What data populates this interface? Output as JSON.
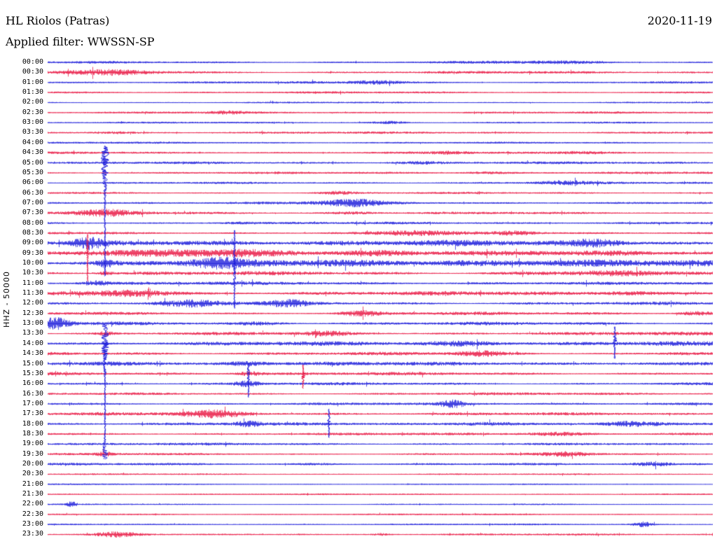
{
  "header": {
    "station": "HL Riolos (Patras)",
    "filter": "Applied filter: WWSSN-SP",
    "date": "2020-11-19"
  },
  "chart_data": {
    "type": "line",
    "title": "HL Riolos (Patras)",
    "subtitle": "Applied filter: WWSSN-SP",
    "date": "2020-11-19",
    "ylabel": "HHZ - 50000",
    "channel": "HHZ",
    "scale": "50000",
    "minutes_per_row": 30,
    "legend": "none",
    "grid": false,
    "background": "#ffffff",
    "trace_colors": [
      "#1616d9",
      "#e8123f"
    ],
    "rows": [
      {
        "t": "00:00",
        "amp": 2.2,
        "bursts": [
          {
            "x": 0.75,
            "w": 0.1,
            "a": 1.8
          }
        ]
      },
      {
        "t": "00:30",
        "amp": 2.2,
        "bursts": [
          {
            "x": 0.1,
            "w": 0.09,
            "a": 2.6
          }
        ]
      },
      {
        "t": "01:00",
        "amp": 2.0,
        "bursts": [
          {
            "x": 0.5,
            "w": 0.035,
            "a": 3.2
          }
        ]
      },
      {
        "t": "01:30",
        "amp": 2.0,
        "bursts": []
      },
      {
        "t": "02:00",
        "amp": 1.6,
        "bursts": []
      },
      {
        "t": "02:30",
        "amp": 1.6,
        "bursts": [
          {
            "x": 0.27,
            "w": 0.03,
            "a": 2.2
          }
        ]
      },
      {
        "t": "03:00",
        "amp": 1.7,
        "bursts": [
          {
            "x": 0.515,
            "w": 0.03,
            "a": 3.6
          }
        ]
      },
      {
        "t": "03:30",
        "amp": 1.8,
        "bursts": [
          {
            "x": 0.095,
            "w": 0.035,
            "a": 2.8
          }
        ]
      },
      {
        "t": "04:00",
        "amp": 1.6,
        "bursts": []
      },
      {
        "t": "04:30",
        "amp": 1.8,
        "bursts": [
          {
            "x": 0.605,
            "w": 0.03,
            "a": 2.2
          },
          {
            "x": 0.81,
            "w": 0.045,
            "a": 3.4
          }
        ]
      },
      {
        "t": "05:00",
        "amp": 1.9,
        "bursts": [
          {
            "x": 0.55,
            "w": 0.04,
            "a": 2.2
          }
        ]
      },
      {
        "t": "05:30",
        "amp": 1.9,
        "bursts": [
          {
            "x": 0.655,
            "w": 0.035,
            "a": 2.4
          }
        ]
      },
      {
        "t": "06:00",
        "amp": 1.9,
        "bursts": [
          {
            "x": 0.77,
            "w": 0.04,
            "a": 2.4
          }
        ]
      },
      {
        "t": "06:30",
        "amp": 1.9,
        "bursts": [
          {
            "x": 0.435,
            "w": 0.03,
            "a": 2.8
          }
        ]
      },
      {
        "t": "07:00",
        "amp": 2.1,
        "bursts": [
          {
            "x": 0.455,
            "w": 0.05,
            "a": 3.4
          }
        ]
      },
      {
        "t": "07:30",
        "amp": 2.1,
        "bursts": [
          {
            "x": 0.09,
            "w": 0.05,
            "a": 2.8
          },
          {
            "x": 0.46,
            "w": 0.035,
            "a": 2.2
          }
        ]
      },
      {
        "t": "08:00",
        "amp": 2.1,
        "bursts": [
          {
            "x": 0.28,
            "w": 0.03,
            "a": 2.0
          }
        ]
      },
      {
        "t": "08:30",
        "amp": 2.6,
        "bursts": [
          {
            "x": 0.55,
            "w": 0.05,
            "a": 2.6
          },
          {
            "x": 0.71,
            "w": 0.03,
            "a": 2.6
          }
        ]
      },
      {
        "t": "09:00",
        "amp": 3.6,
        "bursts": [
          {
            "x": 0.06,
            "w": 0.02,
            "a": 3.0
          },
          {
            "x": 0.52,
            "w": 0.15,
            "a": 1.7
          },
          {
            "x": 0.83,
            "w": 0.04,
            "a": 2.2
          }
        ]
      },
      {
        "t": "09:30",
        "amp": 4.2,
        "bursts": [
          {
            "x": 0.27,
            "w": 0.15,
            "a": 1.6
          },
          {
            "x": 0.52,
            "w": 0.08,
            "a": 1.9
          }
        ]
      },
      {
        "t": "10:00",
        "amp": 4.8,
        "bursts": [
          {
            "x": 0.0863,
            "w": 0.012,
            "a": 2.5
          },
          {
            "x": 0.25,
            "w": 0.04,
            "a": 2.0
          },
          {
            "x": 0.6,
            "w": 0.2,
            "a": 1.5
          }
        ]
      },
      {
        "t": "10:30",
        "amp": 3.6,
        "bursts": [
          {
            "x": 0.0863,
            "w": 0.012,
            "a": 2.5
          },
          {
            "x": 0.8,
            "w": 0.1,
            "a": 1.8
          }
        ]
      },
      {
        "t": "11:00",
        "amp": 2.6,
        "bursts": [
          {
            "x": 0.07,
            "w": 0.02,
            "a": 2.8
          }
        ]
      },
      {
        "t": "11:30",
        "amp": 3.1,
        "bursts": [
          {
            "x": 0.13,
            "w": 0.05,
            "a": 2.8
          },
          {
            "x": 0.87,
            "w": 0.04,
            "a": 2.4
          }
        ]
      },
      {
        "t": "12:00",
        "amp": 3.0,
        "bursts": [
          {
            "x": 0.22,
            "w": 0.045,
            "a": 2.4
          },
          {
            "x": 0.36,
            "w": 0.03,
            "a": 2.4
          }
        ]
      },
      {
        "t": "12:30",
        "amp": 3.0,
        "bursts": [
          {
            "x": 0.47,
            "w": 0.03,
            "a": 2.6
          },
          {
            "x": 0.97,
            "w": 0.025,
            "a": 2.6
          }
        ]
      },
      {
        "t": "13:00",
        "amp": 3.1,
        "bursts": [
          {
            "x": 0.012,
            "w": 0.02,
            "a": 4.5
          },
          {
            "x": 0.33,
            "w": 0.05,
            "a": 2.2
          }
        ]
      },
      {
        "t": "13:30",
        "amp": 3.0,
        "bursts": [
          {
            "x": 0.0863,
            "w": 0.012,
            "a": 2.5
          },
          {
            "x": 0.42,
            "w": 0.04,
            "a": 2.0
          }
        ]
      },
      {
        "t": "14:00",
        "amp": 3.4,
        "bursts": [
          {
            "x": 0.64,
            "w": 0.05,
            "a": 2.4
          }
        ]
      },
      {
        "t": "14:30",
        "amp": 3.0,
        "bursts": [
          {
            "x": 0.65,
            "w": 0.04,
            "a": 2.4
          },
          {
            "x": 0.95,
            "w": 0.03,
            "a": 2.4
          }
        ]
      },
      {
        "t": "15:00",
        "amp": 2.9,
        "bursts": [
          {
            "x": 0.13,
            "w": 0.05,
            "a": 2.4
          },
          {
            "x": 0.3,
            "w": 0.03,
            "a": 2.6
          }
        ]
      },
      {
        "t": "15:30",
        "amp": 2.9,
        "bursts": [
          {
            "x": 0.3,
            "w": 0.02,
            "a": 3.0
          }
        ]
      },
      {
        "t": "16:00",
        "amp": 2.6,
        "bursts": [
          {
            "x": 0.3,
            "w": 0.02,
            "a": 3.0
          }
        ]
      },
      {
        "t": "16:30",
        "amp": 2.3,
        "bursts": []
      },
      {
        "t": "17:00",
        "amp": 2.3,
        "bursts": [
          {
            "x": 0.61,
            "w": 0.018,
            "a": 3.4
          }
        ]
      },
      {
        "t": "17:30",
        "amp": 2.5,
        "bursts": [
          {
            "x": 0.25,
            "w": 0.05,
            "a": 2.8
          }
        ]
      },
      {
        "t": "18:00",
        "amp": 2.3,
        "bursts": [
          {
            "x": 0.3,
            "w": 0.02,
            "a": 2.6
          },
          {
            "x": 0.65,
            "w": 0.045,
            "a": 3.2
          },
          {
            "x": 0.87,
            "w": 0.04,
            "a": 2.2
          }
        ]
      },
      {
        "t": "18:30",
        "amp": 2.3,
        "bursts": [
          {
            "x": 0.76,
            "w": 0.05,
            "a": 2.6
          }
        ]
      },
      {
        "t": "19:00",
        "amp": 2.1,
        "bursts": []
      },
      {
        "t": "19:30",
        "amp": 2.1,
        "bursts": [
          {
            "x": 0.0863,
            "w": 0.015,
            "a": 2.6
          },
          {
            "x": 0.79,
            "w": 0.04,
            "a": 2.6
          }
        ]
      },
      {
        "t": "20:00",
        "amp": 2.1,
        "bursts": [
          {
            "x": 0.42,
            "w": 0.04,
            "a": 2.2
          },
          {
            "x": 0.915,
            "w": 0.035,
            "a": 3.2
          },
          {
            "x": 0.985,
            "w": 0.02,
            "a": 3.2
          }
        ]
      },
      {
        "t": "20:30",
        "amp": 1.2,
        "bursts": []
      },
      {
        "t": "21:00",
        "amp": 1.2,
        "bursts": []
      },
      {
        "t": "21:30",
        "amp": 1.2,
        "bursts": []
      },
      {
        "t": "22:00",
        "amp": 1.3,
        "bursts": [
          {
            "x": 0.035,
            "w": 0.008,
            "a": 4.0
          },
          {
            "x": 0.5,
            "w": 0.02,
            "a": 2.2
          }
        ]
      },
      {
        "t": "22:30",
        "amp": 1.2,
        "bursts": []
      },
      {
        "t": "23:00",
        "amp": 1.3,
        "bursts": [
          {
            "x": 0.895,
            "w": 0.015,
            "a": 5.0
          }
        ]
      },
      {
        "t": "23:30",
        "amp": 1.6,
        "bursts": [
          {
            "x": 0.102,
            "w": 0.035,
            "a": 3.2
          },
          {
            "x": 0.381,
            "w": 0.03,
            "a": 2.6
          },
          {
            "x": 0.502,
            "w": 0.012,
            "a": 2.8
          }
        ]
      }
    ],
    "vertical_events": [
      {
        "x": 0.0863,
        "row_top": 8.4,
        "row_bottom": 21.3,
        "color_index": 0,
        "w_base": 1.0,
        "seed": 11,
        "bulges": [
          {
            "t": 0.12,
            "w": 5.0,
            "s": 0.03
          }
        ]
      },
      {
        "x": 0.0863,
        "row_top": 26.2,
        "row_bottom": 39.5,
        "color_index": 0,
        "w_base": 1.0,
        "seed": 12,
        "bulges": [
          {
            "t": 0.12,
            "w": 4.5,
            "s": 0.03
          },
          {
            "t": 0.95,
            "w": 3.5,
            "s": 0.004
          }
        ]
      },
      {
        "x": 0.06,
        "row_top": 17.2,
        "row_bottom": 21.8,
        "color_index": 1,
        "w_base": 0.7,
        "seed": 13,
        "bulges": [
          {
            "t": 0.3,
            "w": 1.2,
            "s": 0.05
          }
        ]
      },
      {
        "x": 0.281,
        "row_top": 16.8,
        "row_bottom": 24.5,
        "color_index": 0,
        "w_base": 0.7,
        "seed": 14,
        "bulges": [
          {
            "t": 0.45,
            "w": 1.2,
            "s": 0.08
          }
        ]
      },
      {
        "x": 0.302,
        "row_top": 30.0,
        "row_bottom": 33.4,
        "color_index": 0,
        "w_base": 0.8,
        "seed": 15,
        "bulges": [
          {
            "t": 0.3,
            "w": 1.5,
            "s": 0.05
          }
        ]
      },
      {
        "x": 0.384,
        "row_top": 30.2,
        "row_bottom": 32.5,
        "color_index": 1,
        "w_base": 0.9,
        "seed": 16,
        "bulges": [
          {
            "t": 0.45,
            "w": 2.5,
            "s": 0.03
          }
        ]
      },
      {
        "x": 0.423,
        "row_top": 34.6,
        "row_bottom": 37.4,
        "color_index": 0,
        "w_base": 0.8,
        "seed": 17,
        "bulges": [
          {
            "t": 0.4,
            "w": 1.5,
            "s": 0.04
          }
        ]
      },
      {
        "x": 0.8526,
        "row_top": 26.4,
        "row_bottom": 29.5,
        "color_index": 0,
        "w_base": 0.9,
        "seed": 18,
        "bulges": [
          {
            "t": 0.4,
            "w": 2.0,
            "s": 0.04
          }
        ]
      }
    ]
  }
}
